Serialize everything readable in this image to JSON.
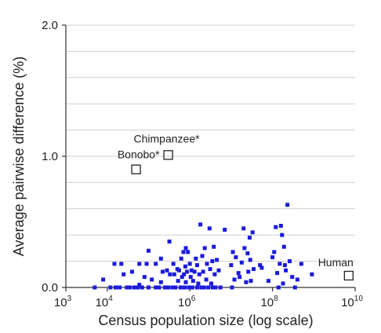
{
  "chart_data": {
    "type": "scatter",
    "xlabel": "Census population size (log scale)",
    "ylabel": "Average pairwise difference (%)",
    "x_scale": "log10",
    "xlim": [
      1000,
      10000000000
    ],
    "ylim": [
      0.0,
      2.0
    ],
    "grid": "horizontal",
    "x_ticks": [
      {
        "value": 1000,
        "base": "10",
        "exp": "3"
      },
      {
        "value": 10000,
        "base": "10",
        "exp": "4"
      },
      {
        "value": 1000000,
        "base": "10",
        "exp": "6"
      },
      {
        "value": 100000000,
        "base": "10",
        "exp": "8"
      },
      {
        "value": 10000000000,
        "base": "10",
        "exp": "10"
      }
    ],
    "y_ticks": [
      {
        "value": 0.0,
        "label": "0.0"
      },
      {
        "value": 1.0,
        "label": "1.0"
      },
      {
        "value": 2.0,
        "label": "2.0"
      }
    ],
    "y_gridlines": [
      0.2,
      0.4,
      0.6,
      0.8,
      1.0,
      1.2,
      1.4,
      1.6,
      1.8,
      2.0
    ],
    "colors": {
      "species": "#1a1adb",
      "highlight": "#222222",
      "grid": "#cfcfcf"
    },
    "highlighted": [
      {
        "name": "Chimpanzee*",
        "x": 300000,
        "y": 1.01
      },
      {
        "name": "Bonobo*",
        "x": 50000,
        "y": 0.9
      },
      {
        "name": "Human",
        "x": 7000000000,
        "y": 0.09
      }
    ],
    "points": [
      [
        5000,
        0.0
      ],
      [
        8000,
        0.06
      ],
      [
        12000,
        0.0
      ],
      [
        15000,
        0.18
      ],
      [
        16000,
        0.0
      ],
      [
        20000,
        0.0
      ],
      [
        22000,
        0.18
      ],
      [
        25000,
        0.1
      ],
      [
        30000,
        0.0
      ],
      [
        35000,
        0.0
      ],
      [
        40000,
        0.12
      ],
      [
        45000,
        0.0
      ],
      [
        55000,
        0.0
      ],
      [
        60000,
        0.02
      ],
      [
        60000,
        0.18
      ],
      [
        70000,
        0.0
      ],
      [
        80000,
        0.08
      ],
      [
        90000,
        0.18
      ],
      [
        100000,
        0.28
      ],
      [
        100000,
        0.0
      ],
      [
        120000,
        0.06
      ],
      [
        150000,
        0.18
      ],
      [
        150000,
        0.0
      ],
      [
        180000,
        0.0
      ],
      [
        200000,
        0.22
      ],
      [
        200000,
        0.04
      ],
      [
        220000,
        0.12
      ],
      [
        250000,
        0.0
      ],
      [
        280000,
        0.13
      ],
      [
        300000,
        0.0
      ],
      [
        320000,
        0.35
      ],
      [
        330000,
        0.1
      ],
      [
        380000,
        0.0
      ],
      [
        400000,
        0.18
      ],
      [
        420000,
        0.1
      ],
      [
        450000,
        0.0
      ],
      [
        500000,
        0.14
      ],
      [
        520000,
        0.05
      ],
      [
        550000,
        0.13
      ],
      [
        600000,
        0.0
      ],
      [
        620000,
        0.22
      ],
      [
        650000,
        0.08
      ],
      [
        700000,
        0.27
      ],
      [
        720000,
        0.1
      ],
      [
        750000,
        0.0
      ],
      [
        780000,
        0.16
      ],
      [
        800000,
        0.3
      ],
      [
        800000,
        0.04
      ],
      [
        850000,
        0.12
      ],
      [
        900000,
        0.27
      ],
      [
        950000,
        0.0
      ],
      [
        1000000,
        0.18
      ],
      [
        1050000,
        0.08
      ],
      [
        1100000,
        0.13
      ],
      [
        1150000,
        0.0
      ],
      [
        1200000,
        0.05
      ],
      [
        1300000,
        0.12
      ],
      [
        1400000,
        0.22
      ],
      [
        1500000,
        0.0
      ],
      [
        1500000,
        0.17
      ],
      [
        1600000,
        0.03
      ],
      [
        1700000,
        0.1
      ],
      [
        1800000,
        0.48
      ],
      [
        1900000,
        0.0
      ],
      [
        2000000,
        0.24
      ],
      [
        2100000,
        0.12
      ],
      [
        2200000,
        0.0
      ],
      [
        2300000,
        0.3
      ],
      [
        2500000,
        0.06
      ],
      [
        2600000,
        0.18
      ],
      [
        2800000,
        0.0
      ],
      [
        3000000,
        0.45
      ],
      [
        3100000,
        0.14
      ],
      [
        3300000,
        0.03
      ],
      [
        3500000,
        0.2
      ],
      [
        3600000,
        0.0
      ],
      [
        3800000,
        0.31
      ],
      [
        4000000,
        0.1
      ],
      [
        4200000,
        0.0
      ],
      [
        4500000,
        0.21
      ],
      [
        5000000,
        0.13
      ],
      [
        5500000,
        0.0
      ],
      [
        7000000,
        0.44
      ],
      [
        10000000,
        0.17
      ],
      [
        10500000,
        0.0
      ],
      [
        11000000,
        0.27
      ],
      [
        12000000,
        0.06
      ],
      [
        13000000,
        0.23
      ],
      [
        15000000,
        0.11
      ],
      [
        16000000,
        0.08
      ],
      [
        18000000,
        0.19
      ],
      [
        20000000,
        0.45
      ],
      [
        21000000,
        0.3
      ],
      [
        23000000,
        0.04
      ],
      [
        25000000,
        0.26
      ],
      [
        26000000,
        0.12
      ],
      [
        28000000,
        0.38
      ],
      [
        29000000,
        0.21
      ],
      [
        30000000,
        0.05
      ],
      [
        33000000,
        0.42
      ],
      [
        35000000,
        0.14
      ],
      [
        50000000,
        0.17
      ],
      [
        55000000,
        0.15
      ],
      [
        80000000,
        0.05
      ],
      [
        100000000,
        0.23
      ],
      [
        110000000,
        0.27
      ],
      [
        120000000,
        0.46
      ],
      [
        130000000,
        0.11
      ],
      [
        140000000,
        0.0
      ],
      [
        150000000,
        0.18
      ],
      [
        160000000,
        0.47
      ],
      [
        170000000,
        0.4
      ],
      [
        180000000,
        0.03
      ],
      [
        190000000,
        0.31
      ],
      [
        200000000,
        0.17
      ],
      [
        210000000,
        0.13
      ],
      [
        230000000,
        0.63
      ],
      [
        260000000,
        0.2
      ],
      [
        300000000,
        0.08
      ],
      [
        350000000,
        0.0
      ],
      [
        400000000,
        0.06
      ],
      [
        500000000,
        0.18
      ],
      [
        900000000,
        0.1
      ]
    ]
  }
}
